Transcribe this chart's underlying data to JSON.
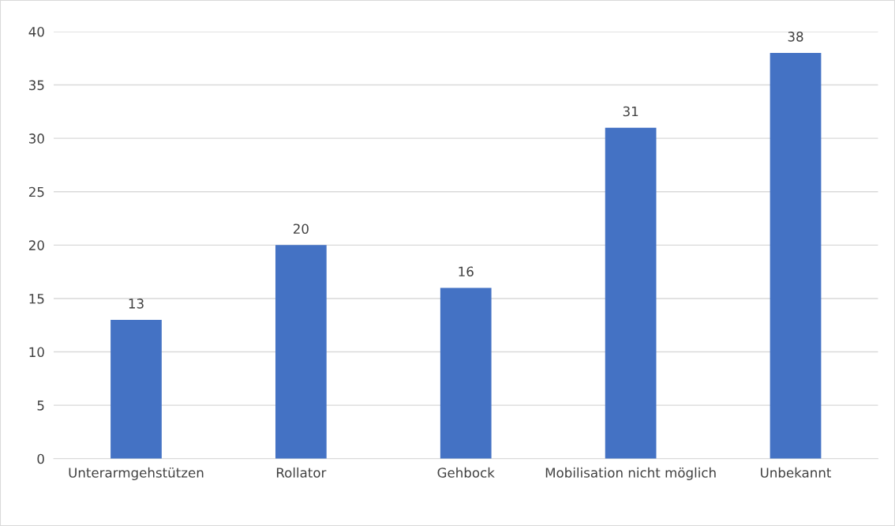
{
  "chart_data": {
    "type": "bar",
    "categories": [
      "Unterarmgehstützen",
      "Rollator",
      "Gehbock",
      "Mobilisation nicht möglich",
      "Unbekannt"
    ],
    "values": [
      13,
      20,
      16,
      31,
      38
    ],
    "color": "#4472c4",
    "ylim": [
      0,
      40
    ],
    "yticks": [
      0,
      5,
      10,
      15,
      20,
      25,
      30,
      35,
      40
    ],
    "grid": "y",
    "data_labels": true
  }
}
